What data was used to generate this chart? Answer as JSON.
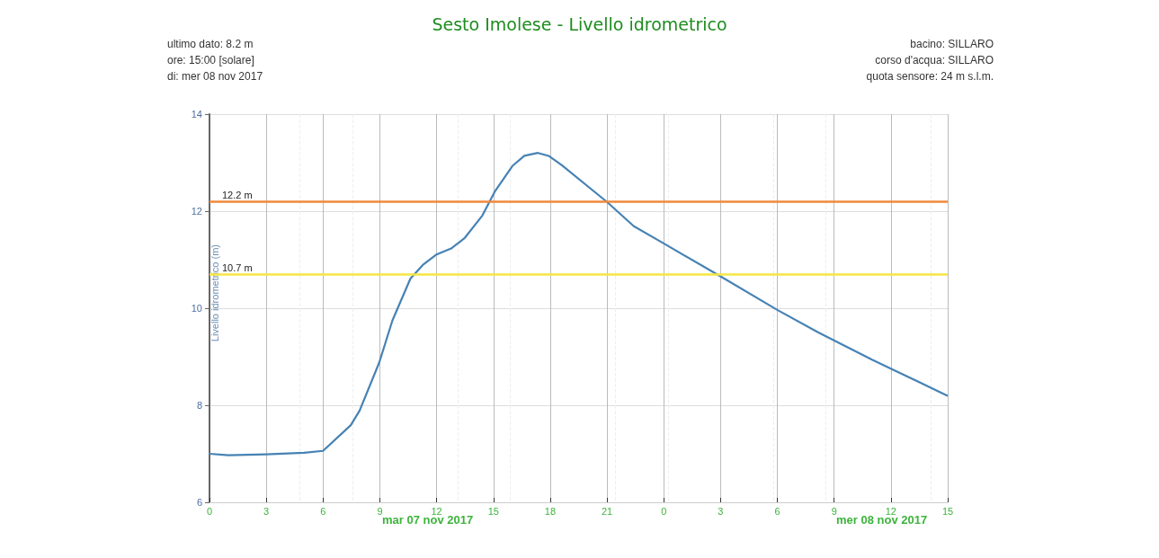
{
  "chart_data": {
    "type": "line",
    "title": "Sesto Imolese - Livello idrometrico",
    "ylabel": "Livello idrometrico (m)",
    "annotations": [
      "ultimo dato: 8.2 m",
      "ore: 15:00 [solare]",
      "di: mer 08 nov 2017",
      "bacino: SILLARO",
      "corso d'acqua: SILLARO",
      "quota sensore: 24 m s.l.m.",
      "mar 07 nov 2017",
      "mer 08 nov 2017"
    ],
    "series": [
      {
        "color": "#4682b4",
        "x": [
          "2017-11-07T00:00",
          "2017-11-07T01:00",
          "2017-11-07T03:00",
          "2017-11-07T05:00",
          "2017-11-07T06:00",
          "2017-11-07T07:28",
          "2017-11-07T07:56",
          "2017-11-07T08:58",
          "2017-11-07T09:40",
          "2017-11-07T10:37",
          "2017-11-07T11:16",
          "2017-11-07T11:58",
          "2017-11-07T12:46",
          "2017-11-07T13:28",
          "2017-11-07T14:25",
          "2017-11-07T15:04",
          "2017-11-07T16:00",
          "2017-11-07T16:38",
          "2017-11-07T17:21",
          "2017-11-07T17:55",
          "2017-11-07T18:36",
          "2017-11-07T21:00",
          "2017-11-07T22:25",
          "2017-11-07T23:56",
          "2017-11-08T02:56",
          "2017-11-08T06:01",
          "2017-11-08T08:10",
          "2017-11-08T11:00",
          "2017-11-08T11:58",
          "2017-11-08T14:58"
        ],
        "values": [
          7.0,
          6.97,
          6.99,
          7.02,
          7.06,
          7.59,
          7.89,
          8.88,
          9.75,
          10.61,
          10.89,
          11.1,
          11.23,
          11.44,
          11.91,
          12.4,
          12.93,
          13.14,
          13.2,
          13.14,
          12.95,
          12.19,
          11.69,
          11.35,
          10.67,
          9.96,
          9.5,
          8.94,
          8.76,
          8.2
        ]
      }
    ],
    "xlim": [
      "2017-11-07T00:00",
      "2017-11-08T15:00"
    ],
    "xticks": [
      {
        "value": "2017-11-07T00:00",
        "label": "0"
      },
      {
        "value": "2017-11-07T03:00",
        "label": "3"
      },
      {
        "value": "2017-11-07T06:00",
        "label": "6"
      },
      {
        "value": "2017-11-07T09:00",
        "label": "9"
      },
      {
        "value": "2017-11-07T12:00",
        "label": "12"
      },
      {
        "value": "2017-11-07T15:00",
        "label": "15"
      },
      {
        "value": "2017-11-07T18:00",
        "label": "18"
      },
      {
        "value": "2017-11-07T21:00",
        "label": "21"
      },
      {
        "value": "2017-11-08T00:00",
        "label": "0"
      },
      {
        "value": "2017-11-08T03:00",
        "label": "3"
      },
      {
        "value": "2017-11-08T06:00",
        "label": "6"
      },
      {
        "value": "2017-11-08T09:00",
        "label": "9"
      },
      {
        "value": "2017-11-08T12:00",
        "label": "12"
      },
      {
        "value": "2017-11-08T15:00",
        "label": "15"
      }
    ],
    "ylim": [
      6,
      14
    ],
    "yticks": [
      6,
      8,
      10,
      12,
      14
    ],
    "ref_lines": [
      {
        "axis": "y",
        "value": 12.2,
        "label": "12.2 m",
        "color": "#f0883a"
      },
      {
        "axis": "y",
        "value": 10.7,
        "label": "10.7 m",
        "color": "#f5e642"
      }
    ],
    "grid": true,
    "marker": "none",
    "line_style": "solid"
  }
}
